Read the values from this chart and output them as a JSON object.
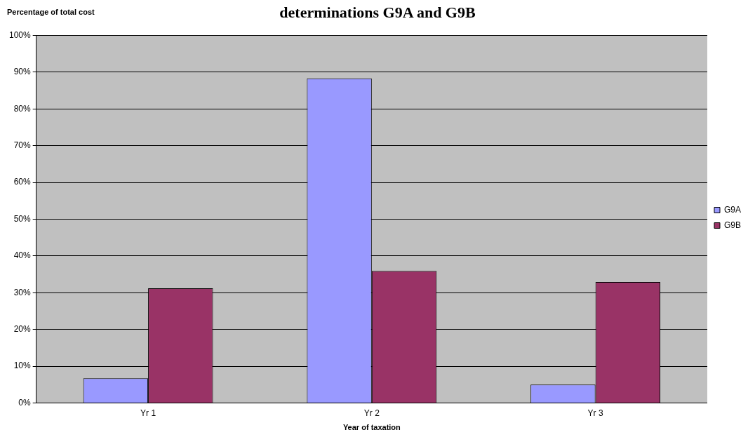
{
  "chart_data": {
    "type": "bar",
    "title": "determinations G9A and G9B",
    "xlabel": "Year of taxation",
    "ylabel": "Percentage of total cost",
    "categories": [
      "Yr 1",
      "Yr 2",
      "Yr 3"
    ],
    "series": [
      {
        "name": "G9A",
        "color": "#9999ff",
        "values": [
          6.7,
          88.3,
          5
        ]
      },
      {
        "name": "G9B",
        "color": "#993366",
        "values": [
          31.2,
          35.9,
          32.9
        ]
      }
    ],
    "ylim": [
      0,
      100
    ],
    "yticks": [
      {
        "value": 0,
        "label": "0%"
      },
      {
        "value": 10,
        "label": "10%"
      },
      {
        "value": 20,
        "label": "20%"
      },
      {
        "value": 30,
        "label": "30%"
      },
      {
        "value": 40,
        "label": "40%"
      },
      {
        "value": 50,
        "label": "50%"
      },
      {
        "value": 60,
        "label": "60%"
      },
      {
        "value": 70,
        "label": "70%"
      },
      {
        "value": 80,
        "label": "80%"
      },
      {
        "value": 90,
        "label": "90%"
      },
      {
        "value": 100,
        "label": "100%"
      }
    ],
    "grid": "y",
    "legend": "right"
  }
}
